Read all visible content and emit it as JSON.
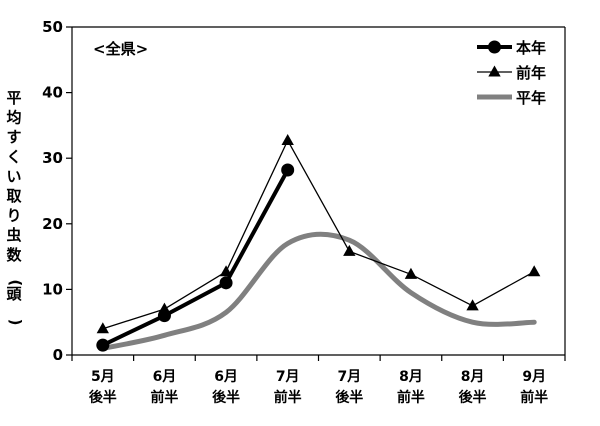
{
  "chart_data": {
    "type": "line",
    "title": "",
    "annotation": "<全県>",
    "ylabel": "平均すくい取り虫数(頭)",
    "xlabel": "",
    "ylim": [
      0,
      50
    ],
    "yticks": [
      0,
      10,
      20,
      30,
      40,
      50
    ],
    "grid": false,
    "legend_position": "top-right",
    "categories": [
      [
        "5月",
        "後半"
      ],
      [
        "6月",
        "前半"
      ],
      [
        "6月",
        "後半"
      ],
      [
        "7月",
        "前半"
      ],
      [
        "7月",
        "後半"
      ],
      [
        "8月",
        "前半"
      ],
      [
        "8月",
        "後半"
      ],
      [
        "9月",
        "前半"
      ]
    ],
    "series": [
      {
        "name": "本年",
        "color": "#000000",
        "marker": "circle",
        "values": [
          1.5,
          6.0,
          11.0,
          28.2,
          null,
          null,
          null,
          null
        ]
      },
      {
        "name": "前年",
        "color": "#000000",
        "marker": "triangle",
        "values": [
          4.0,
          7.0,
          12.7,
          32.7,
          15.8,
          12.3,
          7.5,
          12.7
        ]
      },
      {
        "name": "平年",
        "color": "#808080",
        "marker": "none",
        "smooth": true,
        "values": [
          1.0,
          3.0,
          6.5,
          17.0,
          17.5,
          9.5,
          5.0,
          5.0
        ]
      }
    ]
  }
}
